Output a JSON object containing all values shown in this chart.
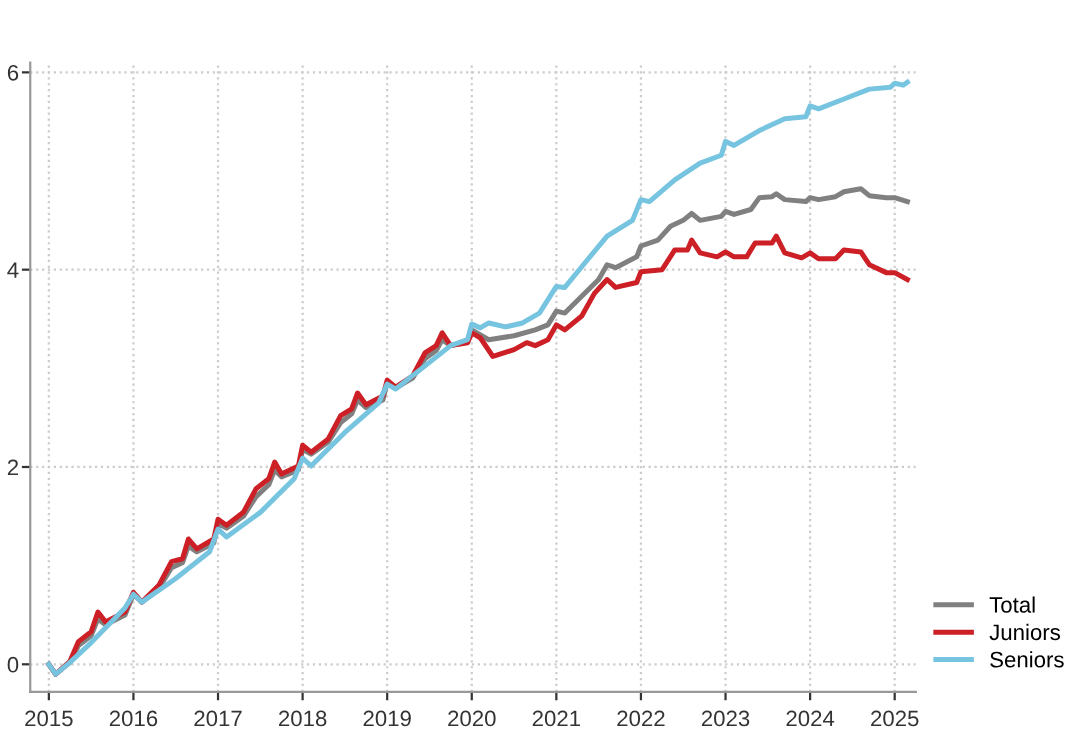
{
  "chart_data": {
    "type": "line",
    "xlim": [
      2014.78,
      2025.25
    ],
    "xticks": [
      2015,
      2016,
      2017,
      2018,
      2019,
      2020,
      2021,
      2022,
      2023,
      2024,
      2025
    ],
    "ylim": [
      -0.28,
      6.1
    ],
    "yticks": [
      0,
      2,
      4,
      6
    ],
    "grid": true,
    "legend": "bottom right",
    "line_style": "solid",
    "marker": "none",
    "series": [
      {
        "name": "Total",
        "color": "#808080",
        "x": [
          2015.0,
          2015.08,
          2015.25,
          2015.35,
          2015.5,
          2015.58,
          2015.67,
          2015.9,
          2016.0,
          2016.1,
          2016.3,
          2016.45,
          2016.58,
          2016.65,
          2016.75,
          2016.95,
          2017.0,
          2017.1,
          2017.3,
          2017.45,
          2017.6,
          2017.67,
          2017.75,
          2017.95,
          2018.0,
          2018.1,
          2018.3,
          2018.45,
          2018.58,
          2018.65,
          2018.75,
          2018.95,
          2019.0,
          2019.1,
          2019.3,
          2019.45,
          2019.58,
          2019.65,
          2019.75,
          2019.95,
          2020.0,
          2020.2,
          2020.5,
          2020.75,
          2020.9,
          2021.0,
          2021.1,
          2021.3,
          2021.5,
          2021.6,
          2021.7,
          2021.95,
          2022.0,
          2022.2,
          2022.35,
          2022.5,
          2022.6,
          2022.7,
          2022.95,
          2023.0,
          2023.1,
          2023.3,
          2023.4,
          2023.55,
          2023.6,
          2023.7,
          2023.95,
          2024.0,
          2024.1,
          2024.3,
          2024.4,
          2024.6,
          2024.7,
          2024.9,
          2025.0,
          2025.15
        ],
        "values": [
          0,
          -0.1,
          0.02,
          0.19,
          0.29,
          0.46,
          0.4,
          0.5,
          0.71,
          0.63,
          0.77,
          0.98,
          1.03,
          1.2,
          1.14,
          1.23,
          1.43,
          1.38,
          1.5,
          1.7,
          1.82,
          1.97,
          1.9,
          1.97,
          2.18,
          2.13,
          2.25,
          2.45,
          2.54,
          2.68,
          2.6,
          2.68,
          2.86,
          2.8,
          2.9,
          3.1,
          3.18,
          3.29,
          3.23,
          3.27,
          3.39,
          3.29,
          3.33,
          3.39,
          3.44,
          3.58,
          3.56,
          3.73,
          3.9,
          4.05,
          4.02,
          4.13,
          4.24,
          4.3,
          4.44,
          4.5,
          4.57,
          4.5,
          4.54,
          4.59,
          4.56,
          4.61,
          4.73,
          4.74,
          4.77,
          4.71,
          4.69,
          4.73,
          4.71,
          4.74,
          4.79,
          4.82,
          4.75,
          4.73,
          4.73,
          4.69
        ]
      },
      {
        "name": "Juniors",
        "color": "#cc1f26",
        "x": [
          2015.0,
          2015.08,
          2015.25,
          2015.35,
          2015.5,
          2015.58,
          2015.67,
          2015.9,
          2016.0,
          2016.1,
          2016.3,
          2016.45,
          2016.58,
          2016.65,
          2016.75,
          2016.95,
          2017.0,
          2017.1,
          2017.3,
          2017.45,
          2017.6,
          2017.67,
          2017.75,
          2017.95,
          2018.0,
          2018.1,
          2018.3,
          2018.45,
          2018.58,
          2018.65,
          2018.75,
          2018.95,
          2019.0,
          2019.1,
          2019.3,
          2019.45,
          2019.58,
          2019.65,
          2019.75,
          2019.95,
          2020.0,
          2020.1,
          2020.25,
          2020.5,
          2020.65,
          2020.75,
          2020.9,
          2021.0,
          2021.1,
          2021.3,
          2021.45,
          2021.6,
          2021.7,
          2021.95,
          2022.0,
          2022.25,
          2022.4,
          2022.55,
          2022.6,
          2022.7,
          2022.9,
          2023.0,
          2023.1,
          2023.25,
          2023.35,
          2023.55,
          2023.6,
          2023.7,
          2023.9,
          2024.0,
          2024.1,
          2024.3,
          2024.4,
          2024.6,
          2024.7,
          2024.9,
          2025.0,
          2025.15
        ],
        "values": [
          0,
          -0.1,
          0.03,
          0.23,
          0.33,
          0.53,
          0.43,
          0.53,
          0.73,
          0.63,
          0.8,
          1.04,
          1.07,
          1.27,
          1.17,
          1.27,
          1.47,
          1.41,
          1.54,
          1.78,
          1.88,
          2.05,
          1.93,
          2.01,
          2.22,
          2.15,
          2.28,
          2.52,
          2.59,
          2.75,
          2.63,
          2.72,
          2.88,
          2.81,
          2.92,
          3.16,
          3.23,
          3.36,
          3.23,
          3.26,
          3.36,
          3.31,
          3.12,
          3.19,
          3.26,
          3.23,
          3.29,
          3.44,
          3.39,
          3.53,
          3.76,
          3.9,
          3.82,
          3.87,
          3.98,
          4.0,
          4.2,
          4.2,
          4.3,
          4.17,
          4.13,
          4.18,
          4.13,
          4.13,
          4.27,
          4.27,
          4.34,
          4.17,
          4.12,
          4.17,
          4.11,
          4.11,
          4.2,
          4.18,
          4.05,
          3.97,
          3.97,
          3.9
        ]
      },
      {
        "name": "Seniors",
        "color": "#76c4df",
        "x": [
          2015.0,
          2015.08,
          2015.25,
          2015.5,
          2015.9,
          2016.0,
          2016.1,
          2016.5,
          2016.9,
          2017.0,
          2017.1,
          2017.5,
          2017.9,
          2018.0,
          2018.1,
          2018.5,
          2018.9,
          2019.0,
          2019.1,
          2019.5,
          2019.75,
          2019.95,
          2020.0,
          2020.1,
          2020.2,
          2020.4,
          2020.6,
          2020.8,
          2021.0,
          2021.1,
          2021.3,
          2021.6,
          2021.9,
          2022.0,
          2022.1,
          2022.4,
          2022.7,
          2022.95,
          2023.0,
          2023.1,
          2023.4,
          2023.7,
          2023.95,
          2024.0,
          2024.1,
          2024.4,
          2024.7,
          2024.95,
          2025.0,
          2025.1,
          2025.15
        ],
        "values": [
          0,
          -0.1,
          0.02,
          0.22,
          0.57,
          0.71,
          0.63,
          0.87,
          1.14,
          1.37,
          1.29,
          1.54,
          1.88,
          2.09,
          2.01,
          2.35,
          2.65,
          2.84,
          2.79,
          3.06,
          3.23,
          3.29,
          3.45,
          3.41,
          3.46,
          3.42,
          3.46,
          3.56,
          3.83,
          3.82,
          4.03,
          4.34,
          4.5,
          4.71,
          4.69,
          4.91,
          5.08,
          5.16,
          5.3,
          5.26,
          5.41,
          5.53,
          5.55,
          5.66,
          5.63,
          5.73,
          5.83,
          5.85,
          5.89,
          5.87,
          5.9
        ]
      }
    ]
  }
}
